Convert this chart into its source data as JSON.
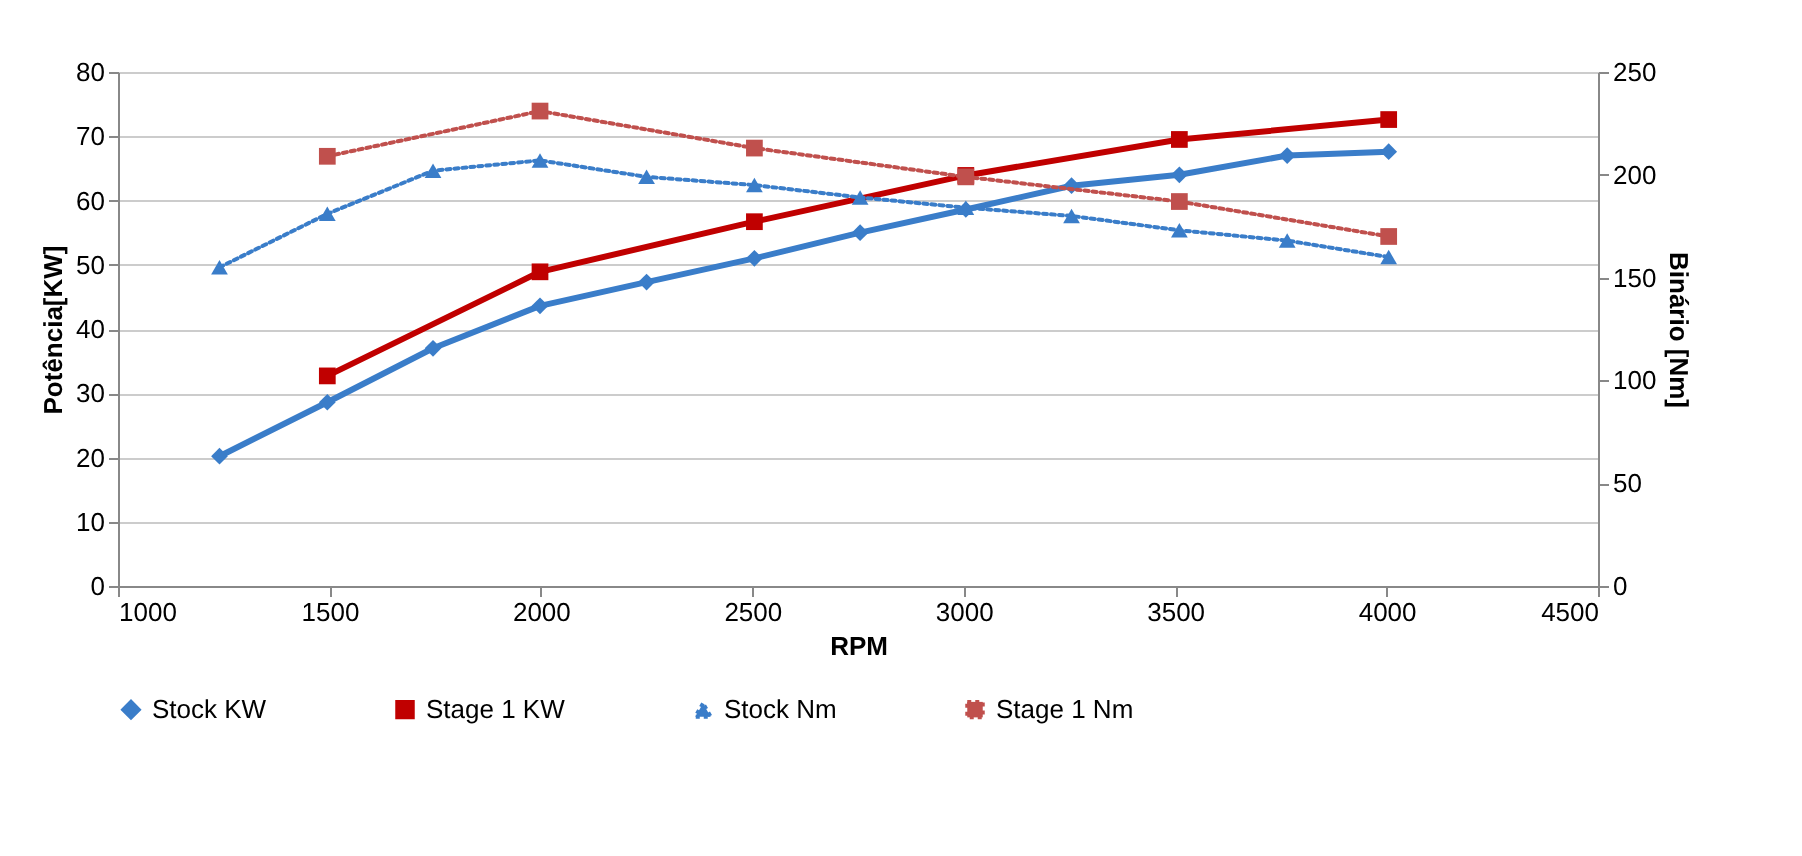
{
  "chart_data": {
    "type": "line",
    "xlabel": "RPM",
    "ylabel": "Potência[KW]",
    "y2label": "Binário [Nm]",
    "xlim": [
      1000,
      4500
    ],
    "xticks": [
      1000,
      1500,
      2000,
      2500,
      3000,
      3500,
      4000,
      4500
    ],
    "ylim": [
      0,
      80
    ],
    "yticks": [
      0,
      10,
      20,
      30,
      40,
      50,
      60,
      70,
      80
    ],
    "y2lim": [
      0,
      250
    ],
    "y2ticks": [
      0,
      50,
      100,
      150,
      200,
      250
    ],
    "grid": "y",
    "legend": "bottom",
    "series": [
      {
        "name": "Stock KW",
        "color": "#3a7dc9",
        "marker": "diamond",
        "line_style": "solid",
        "x": [
          1240,
          1495,
          1745,
          1998,
          2250,
          2505,
          2755,
          3005,
          3255,
          3510,
          3765,
          4005
        ],
        "values": [
          20.2,
          28.6,
          37,
          43.6,
          47.3,
          51,
          55,
          58.6,
          62.3,
          64,
          67,
          67.6
        ]
      },
      {
        "name": "Stage 1 KW",
        "color": "#c00000",
        "marker": "square",
        "line_style": "solid",
        "x": [
          1495,
          1998,
          2505,
          3005,
          3510,
          4005
        ],
        "values": [
          32.7,
          48.9,
          56.7,
          63.9,
          69.5,
          72.6
        ]
      },
      {
        "name": "Stock Nm",
        "color": "#3a7dc9",
        "marker": "triangle",
        "line_style": "dotted",
        "axis": "y2",
        "x": [
          1240,
          1495,
          1745,
          1998,
          2250,
          2505,
          2755,
          3005,
          3255,
          3510,
          3765,
          4005
        ],
        "values": [
          155,
          181,
          202,
          207,
          199,
          195,
          189,
          184,
          180,
          173,
          168,
          160
        ]
      },
      {
        "name": "Stage 1 Nm",
        "color": "#c0504d",
        "marker": "square",
        "line_style": "dotted",
        "axis": "y2",
        "x": [
          1495,
          1998,
          2505,
          3005,
          3510,
          4005
        ],
        "values": [
          209,
          231,
          213,
          199,
          187,
          170
        ]
      }
    ]
  }
}
